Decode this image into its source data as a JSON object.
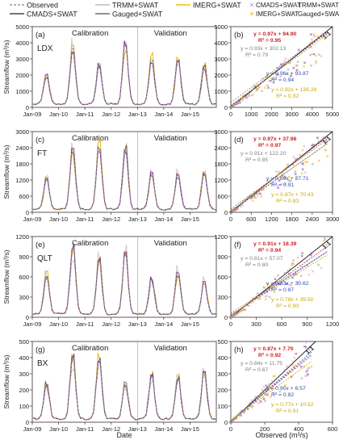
{
  "legend": {
    "items": [
      {
        "label": "Observed",
        "color": "#9a9a9a",
        "style": "dash"
      },
      {
        "label": "TRMM+SWAT",
        "color": "#bdbdbd",
        "style": "line"
      },
      {
        "label": "IMERG+SWAT",
        "color": "#f2c200",
        "style": "line"
      },
      {
        "label": "CMADS+SWAT",
        "color": "#444444",
        "style": "line"
      },
      {
        "label": "Gauged+SWAT",
        "color": "#6b6b6b",
        "style": "line"
      }
    ],
    "scatter_items": [
      {
        "label": "CMADS+SWAT",
        "color": "#c98bd6",
        "marker": "x"
      },
      {
        "label": "TRMM+SWAT",
        "color": "#d7a0e0",
        "marker": "x"
      },
      {
        "label": "IMERG+SWAT",
        "color": "#f0c000",
        "marker": "x"
      },
      {
        "label": "Gauged+SWAT",
        "color": "#9a9a9a",
        "marker": "x"
      }
    ]
  },
  "axis_text": {
    "ts_ylabel": "Streamflow (m³/s)",
    "ts_xlabel": "Date",
    "sc_xlabel": "Observed (m³/s)",
    "calibration": "Calibration",
    "validation": "Validation",
    "one_to_one": "1:1"
  },
  "colors": {
    "observed": "#8c8c8c",
    "trmm": "#c8c8c8",
    "imerg": "#f0b800",
    "cmads": "#5a5a5a",
    "gauged": "#7a2fa0",
    "eq_red": "#cc1f1f",
    "eq_grey": "#808080",
    "eq_blue": "#2a4fb8",
    "eq_yellow": "#c9a800"
  },
  "chart_data": [
    {
      "type": "line",
      "panel": "(a)",
      "station": "LDX",
      "x_ticks": [
        "Jan-09",
        "Jan-10",
        "Jan-11",
        "Jan-12",
        "Jan-13",
        "Jan-14",
        "Jan-15"
      ],
      "ylim": [
        0,
        5000
      ],
      "y_ticks": [
        0,
        1000,
        2000,
        3000,
        4000,
        5000
      ],
      "peaks": [
        {
          "date": "2009-07",
          "value": 2100
        },
        {
          "date": "2010-07",
          "value": 3900
        },
        {
          "date": "2011-07",
          "value": 2800
        },
        {
          "date": "2012-07",
          "value": 4100
        },
        {
          "date": "2013-07",
          "value": 3200
        },
        {
          "date": "2014-07",
          "value": 3000
        },
        {
          "date": "2015-07",
          "value": 2700
        }
      ]
    },
    {
      "type": "scatter",
      "panel": "(b)",
      "xlim": [
        0,
        5000
      ],
      "ylim": [
        0,
        5000
      ],
      "x_ticks": [
        0,
        1000,
        2000,
        3000,
        4000,
        5000
      ],
      "y_ticks": [
        0,
        1000,
        2000,
        3000,
        4000,
        5000
      ],
      "fits": [
        {
          "eq": "y = 0.97x + 94.90",
          "r2": "R² = 0.95",
          "slope": 0.97,
          "intercept": 94.9,
          "color": "red"
        },
        {
          "eq": "y = 0.93x + 302.13",
          "r2": "R² = 0.79",
          "slope": 0.93,
          "intercept": 302.13,
          "color": "grey"
        },
        {
          "eq": "y = 0.96x + 93.87",
          "r2": "R² = 0.94",
          "slope": 0.96,
          "intercept": 93.87,
          "color": "blue"
        },
        {
          "eq": "y = 0.92x + 136.28",
          "r2": "R² = 0.92",
          "slope": 0.92,
          "intercept": 136.28,
          "color": "yellow"
        }
      ]
    },
    {
      "type": "line",
      "panel": "(c)",
      "station": "FT",
      "x_ticks": [
        "Jan-09",
        "Jan-10",
        "Jan-11",
        "Jan-12",
        "Jan-13",
        "Jan-14",
        "Jan-15"
      ],
      "ylim": [
        0,
        3000
      ],
      "y_ticks": [
        0,
        600,
        1200,
        1800,
        2400,
        3000
      ],
      "peaks": [
        {
          "date": "2009-07",
          "value": 1300
        },
        {
          "date": "2010-07",
          "value": 2400
        },
        {
          "date": "2011-07",
          "value": 2600
        },
        {
          "date": "2012-07",
          "value": 2500
        },
        {
          "date": "2013-07",
          "value": 1500
        },
        {
          "date": "2014-07",
          "value": 1500
        },
        {
          "date": "2015-07",
          "value": 1600
        }
      ]
    },
    {
      "type": "scatter",
      "panel": "(d)",
      "xlim": [
        0,
        3000
      ],
      "ylim": [
        0,
        3000
      ],
      "x_ticks": [
        0,
        600,
        1200,
        1800,
        2400,
        3000
      ],
      "y_ticks": [
        0,
        600,
        1200,
        1800,
        2400,
        3000
      ],
      "fits": [
        {
          "eq": "y = 0.97x + 37.98",
          "r2": "R² = 0.97",
          "slope": 0.97,
          "intercept": 37.98,
          "color": "red"
        },
        {
          "eq": "y = 0.91x + 122.20",
          "r2": "R² = 0.85",
          "slope": 0.91,
          "intercept": 122.2,
          "color": "grey"
        },
        {
          "eq": "y = 0.89x + 27.71",
          "r2": "R² = 0.91",
          "slope": 0.89,
          "intercept": 27.71,
          "color": "blue"
        },
        {
          "eq": "y = 0.87x + 70.43",
          "r2": "R² = 0.93",
          "slope": 0.87,
          "intercept": 70.43,
          "color": "yellow"
        }
      ]
    },
    {
      "type": "line",
      "panel": "(e)",
      "station": "QLT",
      "x_ticks": [
        "Jan-09",
        "Jan-10",
        "Jan-11",
        "Jan-12",
        "Jan-13",
        "Jan-14",
        "Jan-15"
      ],
      "ylim": [
        0,
        1200
      ],
      "y_ticks": [
        0,
        300,
        600,
        900,
        1200
      ],
      "peaks": [
        {
          "date": "2009-07",
          "value": 650
        },
        {
          "date": "2010-07",
          "value": 1100
        },
        {
          "date": "2011-07",
          "value": 900
        },
        {
          "date": "2012-07",
          "value": 1000
        },
        {
          "date": "2013-07",
          "value": 600
        },
        {
          "date": "2014-07",
          "value": 700
        },
        {
          "date": "2015-07",
          "value": 550
        }
      ]
    },
    {
      "type": "scatter",
      "panel": "(f)",
      "xlim": [
        0,
        1200
      ],
      "ylim": [
        0,
        1200
      ],
      "x_ticks": [
        0,
        300,
        600,
        900,
        1200
      ],
      "y_ticks": [
        0,
        300,
        600,
        900,
        1200
      ],
      "fits": [
        {
          "eq": "y = 0.91x + 18.39",
          "r2": "R² = 0.94",
          "slope": 0.91,
          "intercept": 18.39,
          "color": "red"
        },
        {
          "eq": "y = 0.81x + 57.07",
          "r2": "R² = 0.80",
          "slope": 0.81,
          "intercept": 57.07,
          "color": "grey"
        },
        {
          "eq": "y = 0.83x + 30.62",
          "r2": "R² = 0.87",
          "slope": 0.83,
          "intercept": 30.62,
          "color": "blue"
        },
        {
          "eq": "y = 0.78x + 39.50",
          "r2": "R² = 0.90",
          "slope": 0.78,
          "intercept": 39.5,
          "color": "yellow"
        }
      ]
    },
    {
      "type": "line",
      "panel": "(g)",
      "station": "BX",
      "x_ticks": [
        "Jan-09",
        "Jan-10",
        "Jan-11",
        "Jan-12",
        "Jan-13",
        "Jan-14",
        "Jan-15"
      ],
      "ylim": [
        0,
        500
      ],
      "y_ticks": [
        0,
        100,
        200,
        300,
        400,
        500
      ],
      "peaks": [
        {
          "date": "2009-07",
          "value": 250
        },
        {
          "date": "2010-07",
          "value": 420
        },
        {
          "date": "2011-07",
          "value": 410
        },
        {
          "date": "2012-07",
          "value": 250
        },
        {
          "date": "2013-07",
          "value": 300
        },
        {
          "date": "2014-07",
          "value": 280
        },
        {
          "date": "2015-07",
          "value": 320
        }
      ]
    },
    {
      "type": "scatter",
      "panel": "(h)",
      "xlim": [
        0,
        600
      ],
      "ylim": [
        0,
        500
      ],
      "x_ticks": [
        0,
        200,
        400,
        600
      ],
      "y_ticks": [
        0,
        100,
        200,
        300,
        400,
        500
      ],
      "fits": [
        {
          "eq": "y = 0.87x + 7.70",
          "r2": "R² = 0.92",
          "slope": 0.87,
          "intercept": 7.7,
          "color": "red"
        },
        {
          "eq": "y = 0.84x + 11.75",
          "r2": "R² = 0.67",
          "slope": 0.84,
          "intercept": 11.75,
          "color": "grey"
        },
        {
          "eq": "y = 0.90x + 6.57",
          "r2": "R² = 0.82",
          "slope": 0.9,
          "intercept": 6.57,
          "color": "blue"
        },
        {
          "eq": "y = 0.77x + 10.52",
          "r2": "R² = 0.91",
          "slope": 0.77,
          "intercept": 10.52,
          "color": "yellow"
        }
      ]
    }
  ]
}
